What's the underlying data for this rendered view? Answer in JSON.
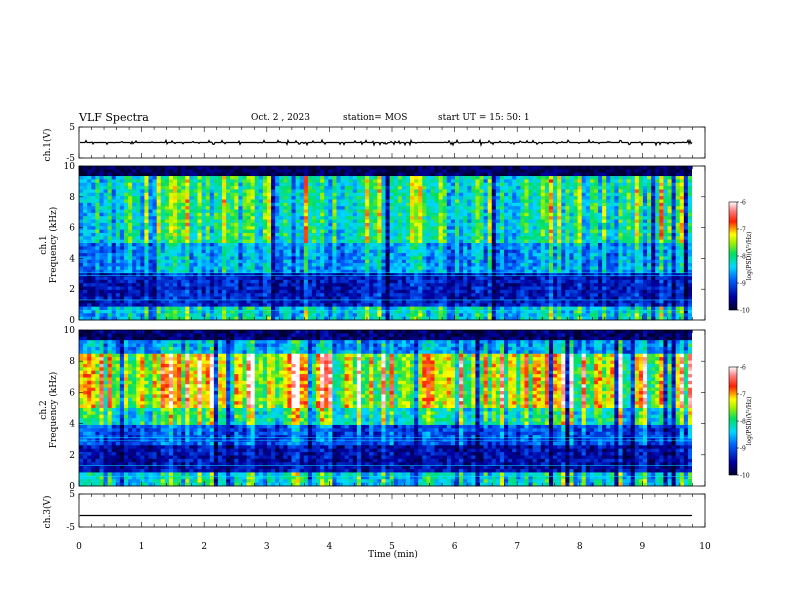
{
  "header": {
    "title": "VLF Spectra",
    "date": "Oct. 2 , 2023",
    "station": "station= MOS",
    "start": "start UT =  15: 50: 1"
  },
  "chart_data": [
    {
      "type": "line",
      "name": "ch.1 waveform",
      "ylabel": "ch.1(V)",
      "ylim": [
        -5,
        5
      ],
      "yticks": [
        "5",
        "-5"
      ],
      "trace": "flat line near 0 V with short spikes"
    },
    {
      "type": "heatmap",
      "name": "ch.1 spectrogram",
      "ylabel": "Frequency (kHz)",
      "channel_label": "ch.1",
      "ylim": [
        0,
        10
      ],
      "yticks": [
        "0",
        "2",
        "4",
        "6",
        "8",
        "10"
      ],
      "colorbar": {
        "label": "log(PSD)(V²/Hz)",
        "range": [
          -10,
          -6
        ],
        "ticks": [
          "-6",
          "-7",
          "-8",
          "-9",
          "-10"
        ]
      },
      "dominant_band_khz": [
        5,
        9
      ]
    },
    {
      "type": "heatmap",
      "name": "ch.2 spectrogram",
      "ylabel": "Frequency (kHz)",
      "channel_label": "ch.2",
      "ylim": [
        0,
        10
      ],
      "yticks": [
        "0",
        "2",
        "4",
        "6",
        "8",
        "10"
      ],
      "colorbar": {
        "label": "log(PSD)(V²/Hz)",
        "range": [
          -10,
          -6
        ],
        "ticks": [
          "-6",
          "-7",
          "-8",
          "-9",
          "-10"
        ]
      },
      "dominant_band_khz": [
        5,
        8
      ]
    },
    {
      "type": "line",
      "name": "ch.3 waveform",
      "ylabel": "ch.3(V)",
      "ylim": [
        -5,
        5
      ],
      "yticks": [
        "5",
        "-5"
      ],
      "trace": "flat line near -1.5 V"
    }
  ],
  "xaxis": {
    "label": "Time  (min)",
    "range": [
      0,
      10
    ],
    "ticks": [
      "0",
      "1",
      "2",
      "3",
      "4",
      "5",
      "6",
      "7",
      "8",
      "9",
      "10"
    ]
  }
}
